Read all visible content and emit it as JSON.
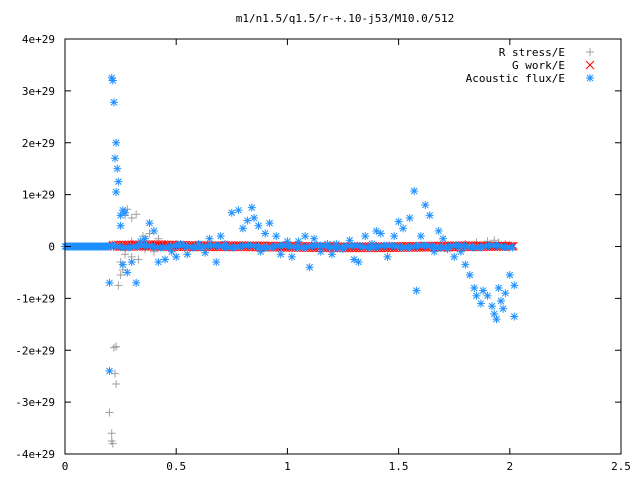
{
  "chart_data": {
    "type": "scatter",
    "title": "m1/n1.5/q1.5/r-+.10-j53/M10.0/512",
    "xlabel": "",
    "ylabel": "",
    "xlim": [
      0,
      2.5
    ],
    "ylim": [
      -4e+29,
      4e+29
    ],
    "x_ticks": [
      0,
      0.5,
      1,
      1.5,
      2,
      2.5
    ],
    "x_tick_labels": [
      "0",
      "0.5",
      "1",
      "1.5",
      "2",
      "2.5"
    ],
    "y_ticks": [
      -4e+29,
      -3e+29,
      -2e+29,
      -1e+29,
      0,
      1e+29,
      2e+29,
      3e+29,
      4e+29
    ],
    "y_tick_labels": [
      "-4e+29",
      "-3e+29",
      "-2e+29",
      "-1e+29",
      "0",
      "1e+29",
      "2e+29",
      "3e+29",
      "4e+29"
    ],
    "grid": false,
    "legend_position": "top-right",
    "series": [
      {
        "name": "R stress/E",
        "marker": "plus",
        "color": "#a0a0a0",
        "points": [
          [
            0.2,
            -3.2e+29
          ],
          [
            0.21,
            -3.6e+29
          ],
          [
            0.21,
            -3.75e+29
          ],
          [
            0.215,
            -3.8e+29
          ],
          [
            0.22,
            -1.95e+29
          ],
          [
            0.23,
            -1.93e+29
          ],
          [
            0.225,
            -2.45e+29
          ],
          [
            0.23,
            -2.65e+29
          ],
          [
            0.24,
            -7.5e+28
          ],
          [
            0.25,
            -5.5e+28
          ],
          [
            0.25,
            -3e+28
          ],
          [
            0.26,
            -4.5e+28
          ],
          [
            0.27,
            6e+28
          ],
          [
            0.28,
            7.2e+28
          ],
          [
            0.3,
            5.5e+28
          ],
          [
            0.32,
            6.2e+28
          ],
          [
            0.27,
            -1.5e+28
          ],
          [
            0.3,
            -2e+28
          ],
          [
            0.33,
            -2.5e+28
          ],
          [
            0.35,
            2e+28
          ],
          [
            0.38,
            2.5e+28
          ],
          [
            0.4,
            -1e+28
          ],
          [
            0.42,
            1.5e+28
          ],
          [
            0.45,
            5e+27
          ],
          [
            0.3,
            1e+28
          ],
          [
            0.36,
            -5e+27
          ],
          [
            0.5,
            5e+27
          ],
          [
            0.6,
            3e+27
          ],
          [
            0.7,
            2e+27
          ],
          [
            0.8,
            2e+27
          ],
          [
            1.0,
            2e+27
          ],
          [
            1.2,
            2e+27
          ],
          [
            1.4,
            2e+27
          ],
          [
            1.6,
            2e+27
          ],
          [
            1.8,
            5e+27
          ],
          [
            1.85,
            8e+27
          ],
          [
            1.9,
            1e+28
          ],
          [
            1.93,
            1.2e+28
          ],
          [
            1.95,
            8e+27
          ],
          [
            1.98,
            5e+27
          ],
          [
            2.0,
            3e+27
          ]
        ]
      },
      {
        "name": "G work/E",
        "marker": "cross",
        "color": "#ff0000",
        "x_range": [
          0.21,
          2.02
        ],
        "y_envelope": [
          [
            0.21,
            0.0,
            3e+27
          ],
          [
            0.4,
            0.0,
            4e+27
          ],
          [
            0.6,
            -1e+27,
            2e+27
          ],
          [
            0.8,
            -1e+27,
            2e+27
          ],
          [
            1.0,
            -2e+27,
            1e+27
          ],
          [
            1.2,
            -3e+27,
            0.0
          ],
          [
            1.4,
            -3e+27,
            0.0
          ],
          [
            1.6,
            -2e+27,
            1e+27
          ],
          [
            1.8,
            -1e+27,
            2e+27
          ],
          [
            2.02,
            0.0,
            1e+27
          ]
        ]
      },
      {
        "name": "Acoustic flux/E",
        "marker": "star",
        "color": "#1e90ff",
        "baseline_x_range": [
          0,
          0.2
        ],
        "points": [
          [
            0.2,
            -7e+28
          ],
          [
            0.2,
            -2.4e+29
          ],
          [
            0.21,
            3.25e+29
          ],
          [
            0.215,
            3.2e+29
          ],
          [
            0.22,
            2.78e+29
          ],
          [
            0.23,
            2e+29
          ],
          [
            0.225,
            1.7e+29
          ],
          [
            0.235,
            1.5e+29
          ],
          [
            0.24,
            1.25e+29
          ],
          [
            0.23,
            1.05e+29
          ],
          [
            0.25,
            6e+28
          ],
          [
            0.26,
            7e+28
          ],
          [
            0.27,
            6.5e+28
          ],
          [
            0.25,
            4e+28
          ],
          [
            0.26,
            -3.5e+28
          ],
          [
            0.28,
            -5e+28
          ],
          [
            0.3,
            -3e+28
          ],
          [
            0.32,
            -7e+28
          ],
          [
            0.34,
            1e+28
          ],
          [
            0.36,
            1.5e+28
          ],
          [
            0.38,
            4.5e+28
          ],
          [
            0.4,
            3e+28
          ],
          [
            0.42,
            -3e+28
          ],
          [
            0.45,
            -2.5e+28
          ],
          [
            0.48,
            -1e+28
          ],
          [
            0.5,
            -2e+28
          ],
          [
            0.52,
            5e+27
          ],
          [
            0.55,
            -1.5e+28
          ],
          [
            0.6,
            5e+27
          ],
          [
            0.63,
            -1.2e+28
          ],
          [
            0.65,
            1.5e+28
          ],
          [
            0.68,
            -3e+28
          ],
          [
            0.7,
            2e+28
          ],
          [
            0.72,
            5e+27
          ],
          [
            0.75,
            6.5e+28
          ],
          [
            0.78,
            7e+28
          ],
          [
            0.8,
            3.5e+28
          ],
          [
            0.82,
            5e+28
          ],
          [
            0.84,
            7.5e+28
          ],
          [
            0.85,
            5.5e+28
          ],
          [
            0.87,
            4e+28
          ],
          [
            0.88,
            -1e+28
          ],
          [
            0.9,
            2.5e+28
          ],
          [
            0.92,
            4.5e+28
          ],
          [
            0.95,
            2e+28
          ],
          [
            0.97,
            -1.5e+28
          ],
          [
            1.0,
            1e+28
          ],
          [
            1.02,
            -2e+28
          ],
          [
            1.05,
            1e+28
          ],
          [
            1.08,
            2e+28
          ],
          [
            1.1,
            -4e+28
          ],
          [
            1.12,
            1.5e+28
          ],
          [
            1.15,
            -1e+28
          ],
          [
            1.18,
            5e+27
          ],
          [
            1.2,
            -1.5e+28
          ],
          [
            1.22,
            5e+27
          ],
          [
            1.25,
            -5e+27
          ],
          [
            1.28,
            1.2e+28
          ],
          [
            1.3,
            -2.5e+28
          ],
          [
            1.32,
            -3e+28
          ],
          [
            1.35,
            2e+28
          ],
          [
            1.38,
            5e+27
          ],
          [
            1.4,
            3e+28
          ],
          [
            1.42,
            2.5e+28
          ],
          [
            1.45,
            -2e+28
          ],
          [
            1.48,
            2e+28
          ],
          [
            1.5,
            4.8e+28
          ],
          [
            1.52,
            3.5e+28
          ],
          [
            1.55,
            5.5e+28
          ],
          [
            1.57,
            1.07e+29
          ],
          [
            1.58,
            -8.5e+28
          ],
          [
            1.6,
            2e+28
          ],
          [
            1.62,
            8e+28
          ],
          [
            1.64,
            6e+28
          ],
          [
            1.66,
            -1e+28
          ],
          [
            1.68,
            3e+28
          ],
          [
            1.7,
            1.5e+28
          ],
          [
            1.72,
            -5e+27
          ],
          [
            1.75,
            -2e+28
          ],
          [
            1.78,
            -1e+28
          ],
          [
            1.8,
            -3.5e+28
          ],
          [
            1.82,
            -5.5e+28
          ],
          [
            1.84,
            -8e+28
          ],
          [
            1.85,
            -9.5e+28
          ],
          [
            1.87,
            -1.1e+29
          ],
          [
            1.88,
            -8.5e+28
          ],
          [
            1.9,
            -9.5e+28
          ],
          [
            1.92,
            -1.15e+29
          ],
          [
            1.93,
            -1.3e+29
          ],
          [
            1.94,
            -1.4e+29
          ],
          [
            1.95,
            -8e+28
          ],
          [
            1.96,
            -1.05e+29
          ],
          [
            1.97,
            -1.2e+29
          ],
          [
            1.98,
            -9e+28
          ],
          [
            2.0,
            -5.5e+28
          ],
          [
            2.02,
            -7.5e+28
          ],
          [
            2.02,
            -1.35e+29
          ]
        ]
      }
    ]
  }
}
